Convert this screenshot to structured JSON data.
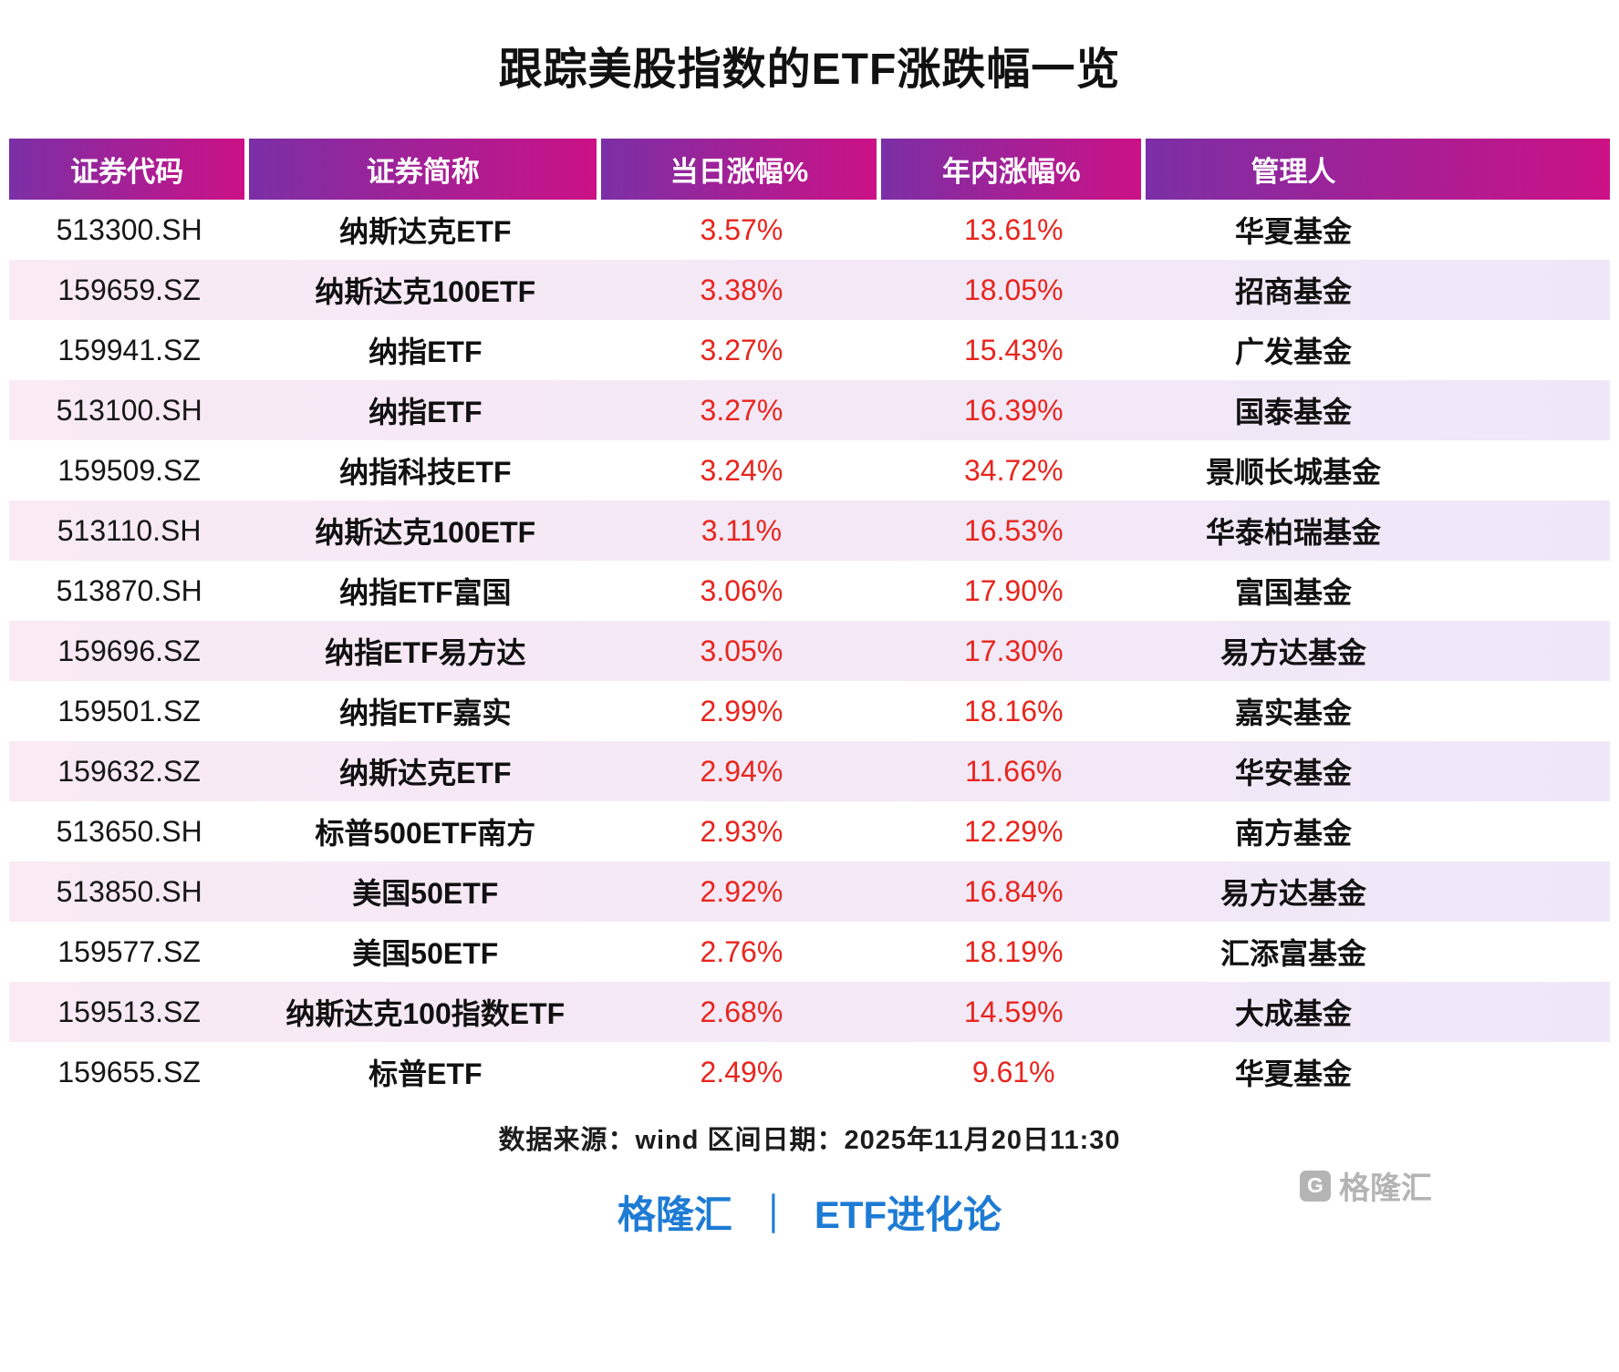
{
  "title": "跟踪美股指数的ETF涨跌幅一览",
  "chart_data": {
    "type": "table",
    "title": "跟踪美股指数的ETF涨跌幅一览",
    "columns": [
      "证券代码",
      "证券简称",
      "当日涨幅%",
      "年内涨幅%",
      "管理人"
    ],
    "rows": [
      [
        "513300.SH",
        "纳斯达克ETF",
        "3.57%",
        "13.61%",
        "华夏基金"
      ],
      [
        "159659.SZ",
        "纳斯达克100ETF",
        "3.38%",
        "18.05%",
        "招商基金"
      ],
      [
        "159941.SZ",
        "纳指ETF",
        "3.27%",
        "15.43%",
        "广发基金"
      ],
      [
        "513100.SH",
        "纳指ETF",
        "3.27%",
        "16.39%",
        "国泰基金"
      ],
      [
        "159509.SZ",
        "纳指科技ETF",
        "3.24%",
        "34.72%",
        "景顺长城基金"
      ],
      [
        "513110.SH",
        "纳斯达克100ETF",
        "3.11%",
        "16.53%",
        "华泰柏瑞基金"
      ],
      [
        "513870.SH",
        "纳指ETF富国",
        "3.06%",
        "17.90%",
        "富国基金"
      ],
      [
        "159696.SZ",
        "纳指ETF易方达",
        "3.05%",
        "17.30%",
        "易方达基金"
      ],
      [
        "159501.SZ",
        "纳指ETF嘉实",
        "2.99%",
        "18.16%",
        "嘉实基金"
      ],
      [
        "159632.SZ",
        "纳斯达克ETF",
        "2.94%",
        "11.66%",
        "华安基金"
      ],
      [
        "513650.SH",
        "标普500ETF南方",
        "2.93%",
        "12.29%",
        "南方基金"
      ],
      [
        "513850.SH",
        "美国50ETF",
        "2.92%",
        "16.84%",
        "易方达基金"
      ],
      [
        "159577.SZ",
        "美国50ETF",
        "2.76%",
        "18.19%",
        "汇添富基金"
      ],
      [
        "159513.SZ",
        "纳斯达克100指数ETF",
        "2.68%",
        "14.59%",
        "大成基金"
      ],
      [
        "159655.SZ",
        "标普ETF",
        "2.49%",
        "9.61%",
        "华夏基金"
      ]
    ]
  },
  "footer": {
    "source_line": "数据来源：wind  区间日期：2025年11月20日11:30",
    "brand_left": "格隆汇",
    "brand_separator": "｜",
    "brand_right": "ETF进化论",
    "watermark_icon_letter": "G",
    "watermark_text": "格隆汇"
  },
  "colors": {
    "header_gradient_start": "#7b2fa6",
    "header_gradient_end": "#cc1186",
    "row_alt_start": "#f9eaf4",
    "row_alt_end": "#efe7f8",
    "value_red": "#e8251e",
    "brand_blue": "#1d7bd4",
    "watermark_gray": "#b4b4b4"
  }
}
